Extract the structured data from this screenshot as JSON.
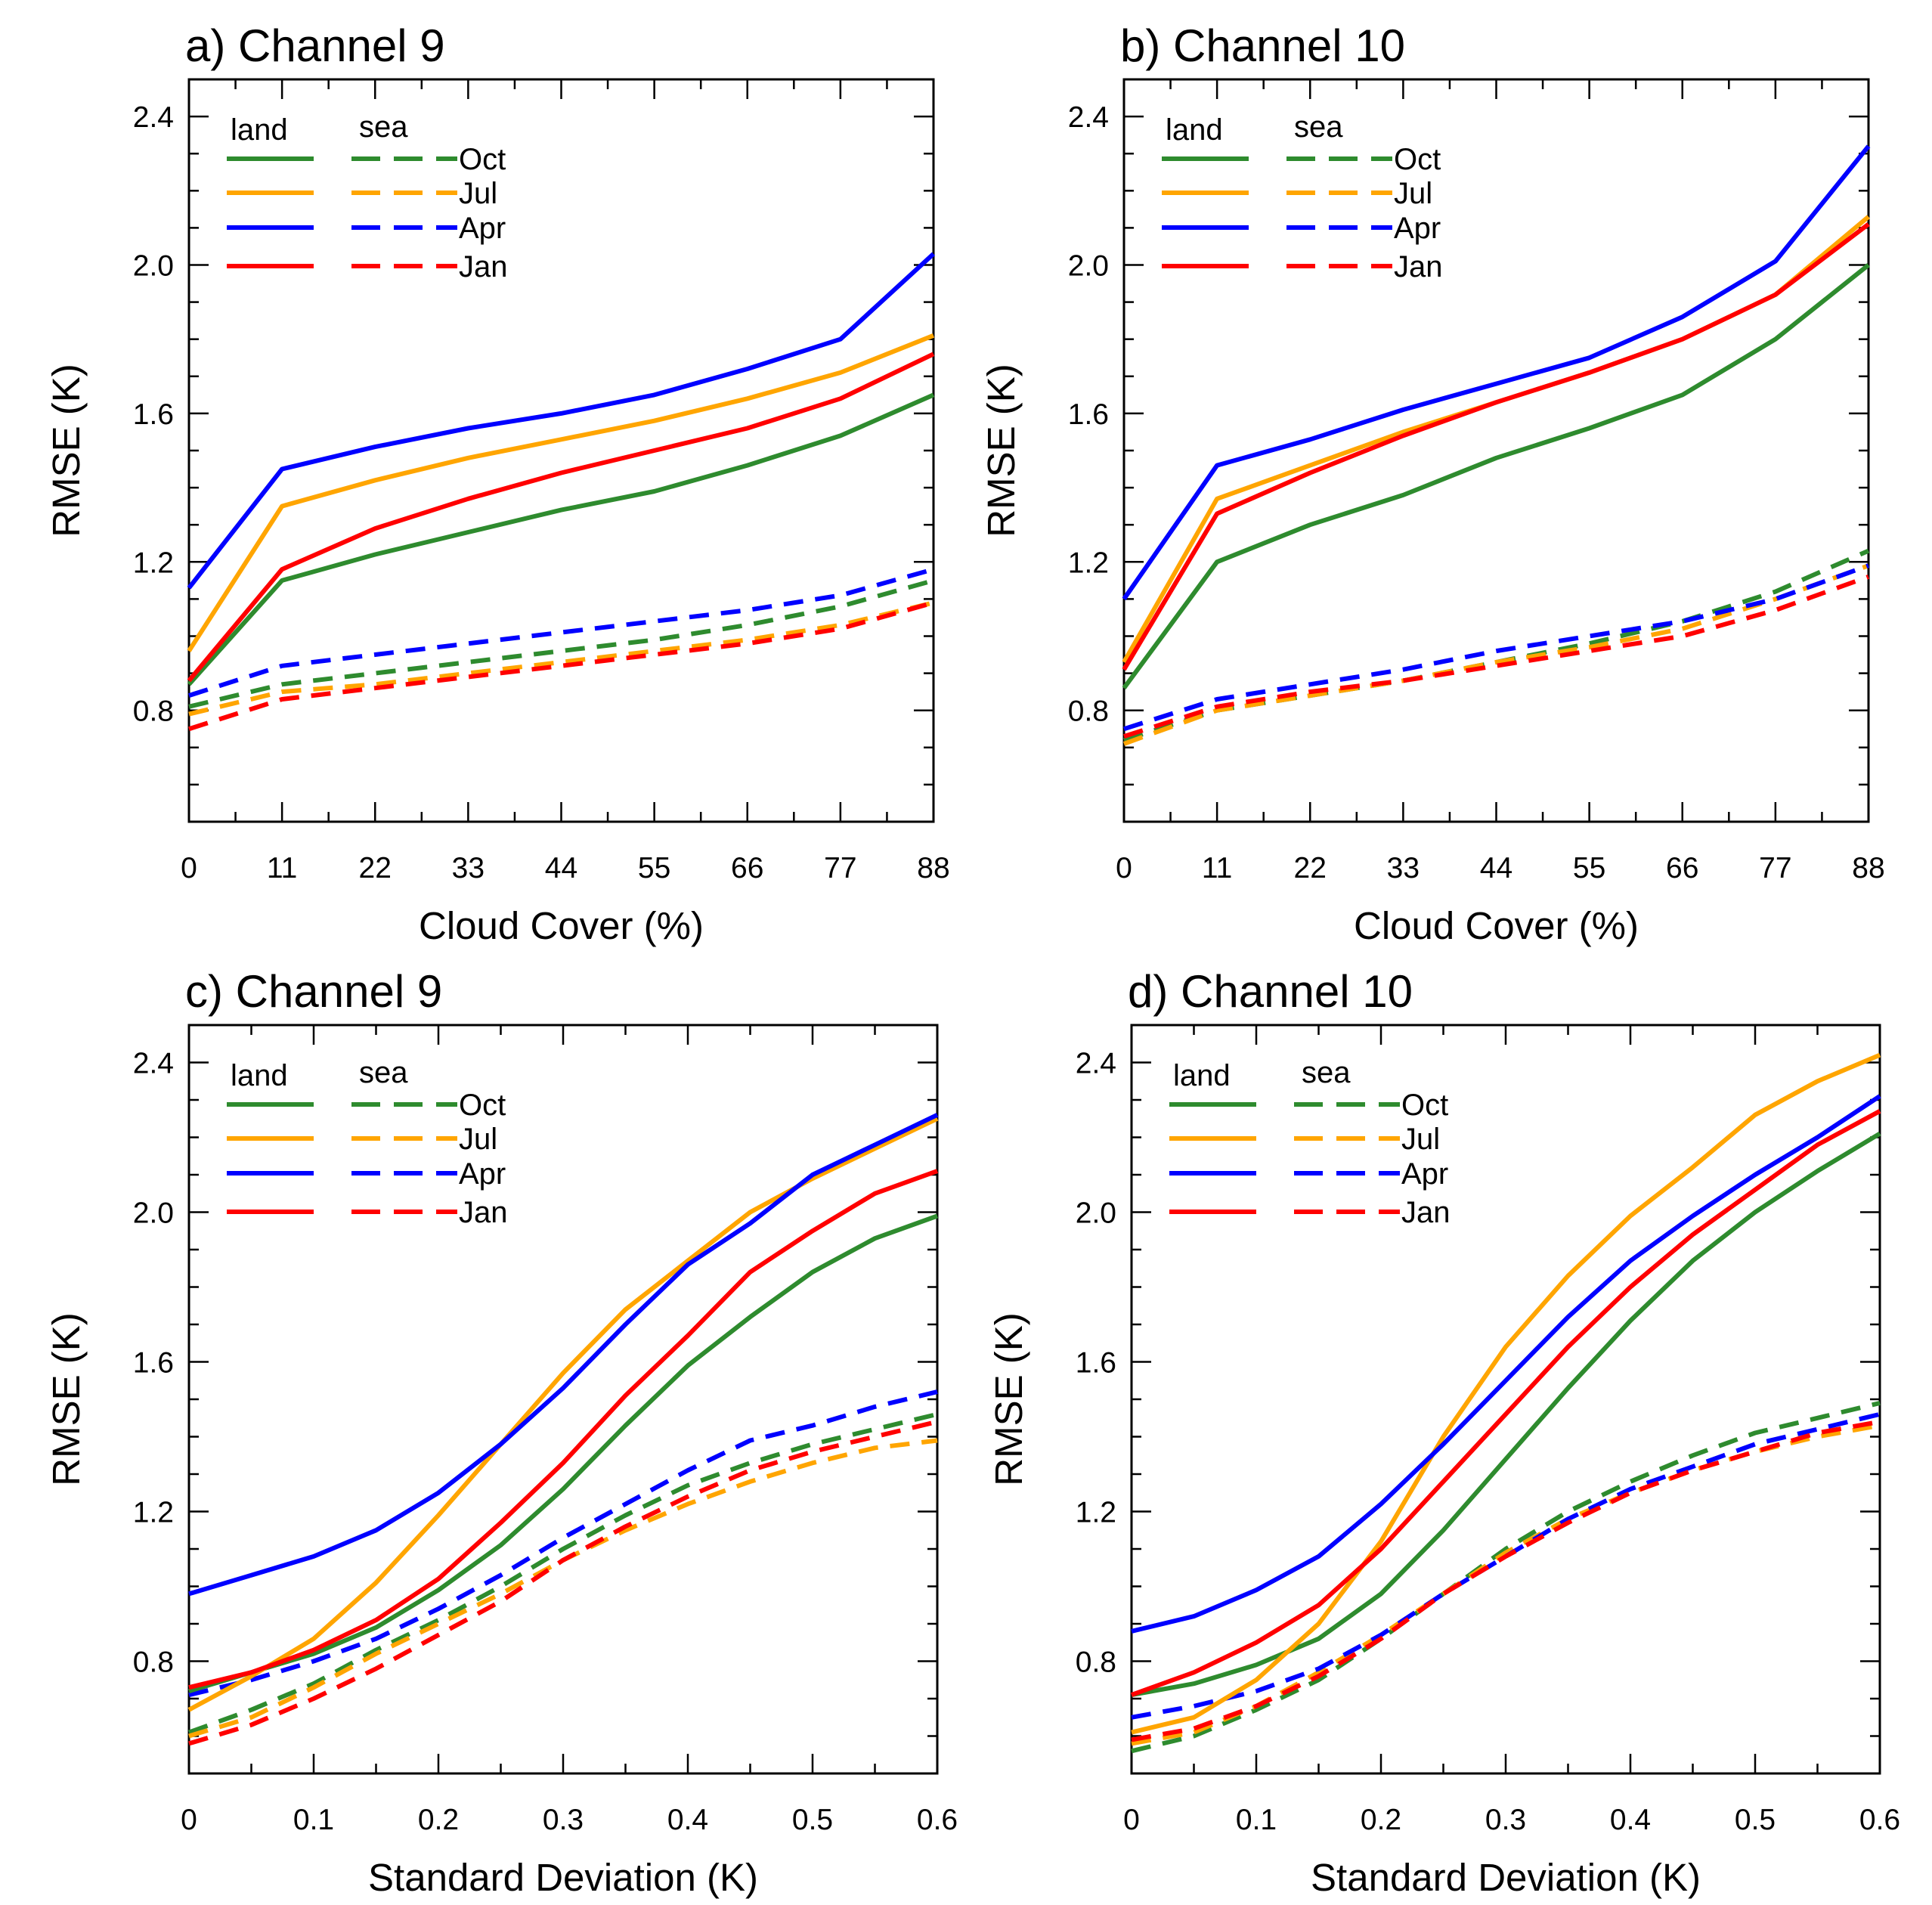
{
  "legend": {
    "land_label": "land",
    "sea_label": "sea"
  },
  "colors": {
    "Oct": "#2e8b2e",
    "Jul": "#ffa500",
    "Apr": "#0000ff",
    "Jan": "#ff0000",
    "axis": "#000000"
  },
  "chart_data": [
    {
      "id": "a",
      "type": "line",
      "title": "a) Channel 9",
      "xlabel": "Cloud Cover (%)",
      "ylabel": "RMSE (K)",
      "xlim": [
        0,
        88
      ],
      "ylim": [
        0.5,
        2.5
      ],
      "xticks": [
        0,
        11,
        22,
        33,
        44,
        55,
        66,
        77,
        88
      ],
      "xtick_labels": [
        "0",
        "11",
        "22",
        "33",
        "44",
        "55",
        "66",
        "77",
        "88"
      ],
      "yticks": [
        0.8,
        1.2,
        1.6,
        2.0,
        2.4
      ],
      "ytick_labels": [
        "0.8",
        "1.2",
        "1.6",
        "2.0",
        "2.4"
      ],
      "legend_position": "top-left",
      "x": [
        0,
        11,
        22,
        33,
        44,
        55,
        66,
        77,
        88
      ],
      "series": [
        {
          "name": "Oct",
          "surface": "land",
          "values": [
            0.87,
            1.15,
            1.22,
            1.28,
            1.34,
            1.39,
            1.46,
            1.54,
            1.65
          ]
        },
        {
          "name": "Jul",
          "surface": "land",
          "values": [
            0.96,
            1.35,
            1.42,
            1.48,
            1.53,
            1.58,
            1.64,
            1.71,
            1.81
          ]
        },
        {
          "name": "Apr",
          "surface": "land",
          "values": [
            1.13,
            1.45,
            1.51,
            1.56,
            1.6,
            1.65,
            1.72,
            1.8,
            2.03
          ]
        },
        {
          "name": "Jan",
          "surface": "land",
          "values": [
            0.88,
            1.18,
            1.29,
            1.37,
            1.44,
            1.5,
            1.56,
            1.64,
            1.76
          ]
        },
        {
          "name": "Oct",
          "surface": "sea",
          "values": [
            0.81,
            0.87,
            0.9,
            0.93,
            0.96,
            0.99,
            1.03,
            1.08,
            1.15
          ]
        },
        {
          "name": "Jul",
          "surface": "sea",
          "values": [
            0.79,
            0.85,
            0.87,
            0.9,
            0.93,
            0.96,
            0.99,
            1.03,
            1.09
          ]
        },
        {
          "name": "Apr",
          "surface": "sea",
          "values": [
            0.84,
            0.92,
            0.95,
            0.98,
            1.01,
            1.04,
            1.07,
            1.11,
            1.18
          ]
        },
        {
          "name": "Jan",
          "surface": "sea",
          "values": [
            0.75,
            0.83,
            0.86,
            0.89,
            0.92,
            0.95,
            0.98,
            1.02,
            1.09
          ]
        }
      ]
    },
    {
      "id": "b",
      "type": "line",
      "title": "b) Channel 10",
      "xlabel": "Cloud Cover (%)",
      "ylabel": "RMSE (K)",
      "xlim": [
        0,
        88
      ],
      "ylim": [
        0.5,
        2.5
      ],
      "xticks": [
        0,
        11,
        22,
        33,
        44,
        55,
        66,
        77,
        88
      ],
      "xtick_labels": [
        "0",
        "11",
        "22",
        "33",
        "44",
        "55",
        "66",
        "77",
        "88"
      ],
      "yticks": [
        0.8,
        1.2,
        1.6,
        2.0,
        2.4
      ],
      "ytick_labels": [
        "0.8",
        "1.2",
        "1.6",
        "2.0",
        "2.4"
      ],
      "legend_position": "top-left",
      "x": [
        0,
        11,
        22,
        33,
        44,
        55,
        66,
        77,
        88
      ],
      "series": [
        {
          "name": "Oct",
          "surface": "land",
          "values": [
            0.86,
            1.2,
            1.3,
            1.38,
            1.48,
            1.56,
            1.65,
            1.8,
            2.0
          ]
        },
        {
          "name": "Jul",
          "surface": "land",
          "values": [
            0.93,
            1.37,
            1.46,
            1.55,
            1.63,
            1.71,
            1.8,
            1.92,
            2.13
          ]
        },
        {
          "name": "Apr",
          "surface": "land",
          "values": [
            1.1,
            1.46,
            1.53,
            1.61,
            1.68,
            1.75,
            1.86,
            2.01,
            2.32
          ]
        },
        {
          "name": "Jan",
          "surface": "land",
          "values": [
            0.91,
            1.33,
            1.44,
            1.54,
            1.63,
            1.71,
            1.8,
            1.92,
            2.11
          ]
        },
        {
          "name": "Oct",
          "surface": "sea",
          "values": [
            0.72,
            0.8,
            0.84,
            0.88,
            0.93,
            0.98,
            1.04,
            1.12,
            1.23
          ]
        },
        {
          "name": "Jul",
          "surface": "sea",
          "values": [
            0.71,
            0.8,
            0.84,
            0.88,
            0.93,
            0.97,
            1.02,
            1.1,
            1.19
          ]
        },
        {
          "name": "Apr",
          "surface": "sea",
          "values": [
            0.75,
            0.83,
            0.87,
            0.91,
            0.96,
            1.0,
            1.04,
            1.1,
            1.19
          ]
        },
        {
          "name": "Jan",
          "surface": "sea",
          "values": [
            0.73,
            0.81,
            0.85,
            0.88,
            0.92,
            0.96,
            1.0,
            1.07,
            1.16
          ]
        }
      ]
    },
    {
      "id": "c",
      "type": "line",
      "title": "c) Channel 9",
      "xlabel": "Standard Deviation (K)",
      "ylabel": "RMSE (K)",
      "xlim": [
        0,
        0.6
      ],
      "ylim": [
        0.5,
        2.5
      ],
      "xticks": [
        0,
        0.1,
        0.2,
        0.3,
        0.4,
        0.5,
        0.6
      ],
      "xtick_labels": [
        "0",
        "0.1",
        "0.2",
        "0.3",
        "0.4",
        "0.5",
        "0.6"
      ],
      "yticks": [
        0.8,
        1.2,
        1.6,
        2.0,
        2.4
      ],
      "ytick_labels": [
        "0.8",
        "1.2",
        "1.6",
        "2.0",
        "2.4"
      ],
      "legend_position": "top-left",
      "x": [
        0,
        0.05,
        0.1,
        0.15,
        0.2,
        0.25,
        0.3,
        0.35,
        0.4,
        0.45,
        0.5,
        0.55,
        0.6
      ],
      "series": [
        {
          "name": "Oct",
          "surface": "land",
          "values": [
            0.72,
            0.77,
            0.82,
            0.89,
            0.99,
            1.11,
            1.26,
            1.43,
            1.59,
            1.72,
            1.84,
            1.93,
            1.99
          ]
        },
        {
          "name": "Jul",
          "surface": "land",
          "values": [
            0.67,
            0.76,
            0.86,
            1.01,
            1.19,
            1.38,
            1.57,
            1.74,
            1.87,
            2.0,
            2.09,
            2.17,
            2.25
          ]
        },
        {
          "name": "Apr",
          "surface": "land",
          "values": [
            0.98,
            1.03,
            1.08,
            1.15,
            1.25,
            1.38,
            1.53,
            1.7,
            1.86,
            1.97,
            2.1,
            2.18,
            2.26
          ]
        },
        {
          "name": "Jan",
          "surface": "land",
          "values": [
            0.73,
            0.77,
            0.83,
            0.91,
            1.02,
            1.17,
            1.33,
            1.51,
            1.67,
            1.84,
            1.95,
            2.05,
            2.11
          ]
        },
        {
          "name": "Oct",
          "surface": "sea",
          "values": [
            0.61,
            0.67,
            0.74,
            0.83,
            0.91,
            1.0,
            1.1,
            1.19,
            1.27,
            1.33,
            1.38,
            1.42,
            1.46
          ]
        },
        {
          "name": "Jul",
          "surface": "sea",
          "values": [
            0.6,
            0.65,
            0.73,
            0.82,
            0.9,
            0.98,
            1.07,
            1.15,
            1.22,
            1.28,
            1.33,
            1.37,
            1.39
          ]
        },
        {
          "name": "Apr",
          "surface": "sea",
          "values": [
            0.71,
            0.75,
            0.8,
            0.86,
            0.94,
            1.03,
            1.13,
            1.22,
            1.31,
            1.39,
            1.43,
            1.48,
            1.52
          ]
        },
        {
          "name": "Jan",
          "surface": "sea",
          "values": [
            0.58,
            0.63,
            0.7,
            0.78,
            0.87,
            0.96,
            1.07,
            1.16,
            1.24,
            1.31,
            1.36,
            1.4,
            1.44
          ]
        }
      ]
    },
    {
      "id": "d",
      "type": "line",
      "title": "d) Channel 10",
      "xlabel": "Standard Deviation (K)",
      "ylabel": "RMSE (K)",
      "xlim": [
        0,
        0.6
      ],
      "ylim": [
        0.5,
        2.5
      ],
      "xticks": [
        0,
        0.1,
        0.2,
        0.3,
        0.4,
        0.5,
        0.6
      ],
      "xtick_labels": [
        "0",
        "0.1",
        "0.2",
        "0.3",
        "0.4",
        "0.5",
        "0.6"
      ],
      "yticks": [
        0.8,
        1.2,
        1.6,
        2.0,
        2.4
      ],
      "ytick_labels": [
        "0.8",
        "1.2",
        "1.6",
        "2.0",
        "2.4"
      ],
      "legend_position": "top-left",
      "x": [
        0,
        0.05,
        0.1,
        0.15,
        0.2,
        0.25,
        0.3,
        0.35,
        0.4,
        0.45,
        0.5,
        0.55,
        0.6
      ],
      "series": [
        {
          "name": "Oct",
          "surface": "land",
          "values": [
            0.71,
            0.74,
            0.79,
            0.86,
            0.98,
            1.15,
            1.34,
            1.53,
            1.71,
            1.87,
            2.0,
            2.11,
            2.21
          ]
        },
        {
          "name": "Jul",
          "surface": "land",
          "values": [
            0.61,
            0.65,
            0.75,
            0.9,
            1.12,
            1.4,
            1.64,
            1.83,
            1.99,
            2.12,
            2.26,
            2.35,
            2.42
          ]
        },
        {
          "name": "Apr",
          "surface": "land",
          "values": [
            0.88,
            0.92,
            0.99,
            1.08,
            1.22,
            1.38,
            1.55,
            1.72,
            1.87,
            1.99,
            2.1,
            2.2,
            2.31
          ]
        },
        {
          "name": "Jan",
          "surface": "land",
          "values": [
            0.71,
            0.77,
            0.85,
            0.95,
            1.1,
            1.28,
            1.46,
            1.64,
            1.8,
            1.94,
            2.06,
            2.18,
            2.27
          ]
        },
        {
          "name": "Oct",
          "surface": "sea",
          "values": [
            0.56,
            0.6,
            0.67,
            0.75,
            0.86,
            0.98,
            1.1,
            1.2,
            1.28,
            1.35,
            1.41,
            1.45,
            1.49
          ]
        },
        {
          "name": "Jul",
          "surface": "sea",
          "values": [
            0.58,
            0.61,
            0.68,
            0.77,
            0.87,
            0.98,
            1.09,
            1.18,
            1.25,
            1.31,
            1.36,
            1.4,
            1.43
          ]
        },
        {
          "name": "Apr",
          "surface": "sea",
          "values": [
            0.65,
            0.68,
            0.72,
            0.78,
            0.87,
            0.98,
            1.08,
            1.18,
            1.26,
            1.32,
            1.38,
            1.42,
            1.46
          ]
        },
        {
          "name": "Jan",
          "surface": "sea",
          "values": [
            0.59,
            0.62,
            0.68,
            0.76,
            0.86,
            0.98,
            1.08,
            1.17,
            1.25,
            1.31,
            1.36,
            1.41,
            1.44
          ]
        }
      ]
    }
  ]
}
